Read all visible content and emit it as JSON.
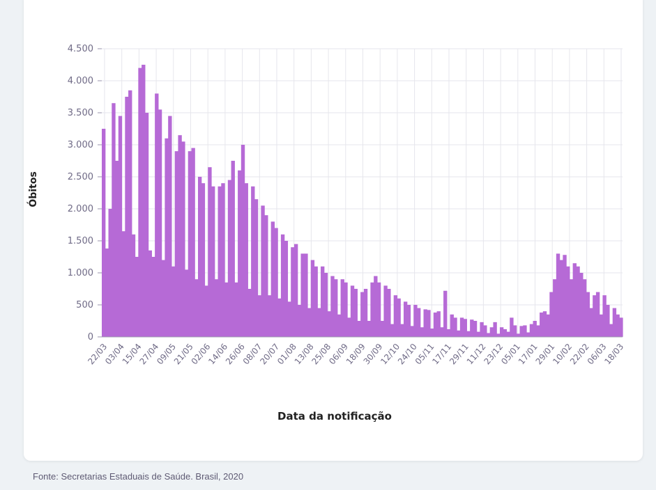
{
  "source_note": "Fonte: Secretarias Estaduais de Saúde. Brasil, 2020",
  "colors": {
    "bar": "#b66ad6",
    "grid": "#e6e6ec",
    "axis": "#9a95ad",
    "background": "#ffffff"
  },
  "chart_data": {
    "type": "bar",
    "xlabel": "Data da notificação",
    "ylabel": "Óbitos",
    "ylim": [
      0,
      4500
    ],
    "yticks": [
      0,
      500,
      1000,
      1500,
      2000,
      2500,
      3000,
      3500,
      4000,
      4500
    ],
    "ytick_labels": [
      "0",
      "500",
      "1.000",
      "1.500",
      "2.000",
      "2.500",
      "3.000",
      "3.500",
      "4.000",
      "4.500"
    ],
    "x_tick_labels": [
      "22/03",
      "03/04",
      "15/04",
      "27/04",
      "09/05",
      "21/05",
      "02/06",
      "14/06",
      "26/06",
      "08/07",
      "20/07",
      "01/08",
      "13/08",
      "25/08",
      "06/09",
      "18/09",
      "30/09",
      "12/10",
      "24/10",
      "05/11",
      "17/11",
      "29/11",
      "11/12",
      "23/12",
      "05/01",
      "17/01",
      "29/01",
      "10/02",
      "22/02",
      "06/03",
      "18/03"
    ],
    "grid": true,
    "series": [
      {
        "values": [
          3250,
          1380,
          2000,
          3650,
          2750,
          3450,
          1650,
          3750,
          3850,
          1600,
          1250,
          4200,
          4250,
          3500,
          1350,
          1250,
          3800,
          3550,
          1200,
          3100,
          3450,
          1100,
          2900,
          3150,
          3050,
          1050,
          2900,
          2950,
          900,
          2500,
          2400,
          800,
          2650,
          2350,
          900,
          2350,
          2400,
          850,
          2450,
          2750,
          850,
          2600,
          3000,
          2400,
          750,
          2350,
          2150,
          650,
          2050,
          1900,
          650,
          1800,
          1700,
          600,
          1600,
          1500,
          550,
          1400,
          1450,
          500,
          1300,
          1300,
          450,
          1200,
          1100,
          450,
          1100,
          1000,
          400,
          950,
          900,
          350,
          900,
          850,
          300,
          800,
          750,
          250,
          700,
          750,
          250,
          850,
          950,
          850,
          250,
          800,
          750,
          200,
          650,
          600,
          200,
          550,
          500,
          170,
          500,
          450,
          150,
          430,
          420,
          130,
          380,
          400,
          150,
          720,
          120,
          350,
          300,
          100,
          300,
          280,
          90,
          270,
          250,
          80,
          230,
          180,
          60,
          150,
          230,
          50,
          150,
          120,
          80,
          300,
          180,
          50,
          170,
          180,
          70,
          200,
          250,
          180,
          380,
          400,
          350,
          700,
          900,
          1300,
          1200,
          1280,
          1100,
          900,
          1150,
          1100,
          1000,
          900,
          700,
          450,
          650,
          700,
          350,
          650,
          500,
          200,
          450,
          350,
          300
        ]
      }
    ]
  }
}
